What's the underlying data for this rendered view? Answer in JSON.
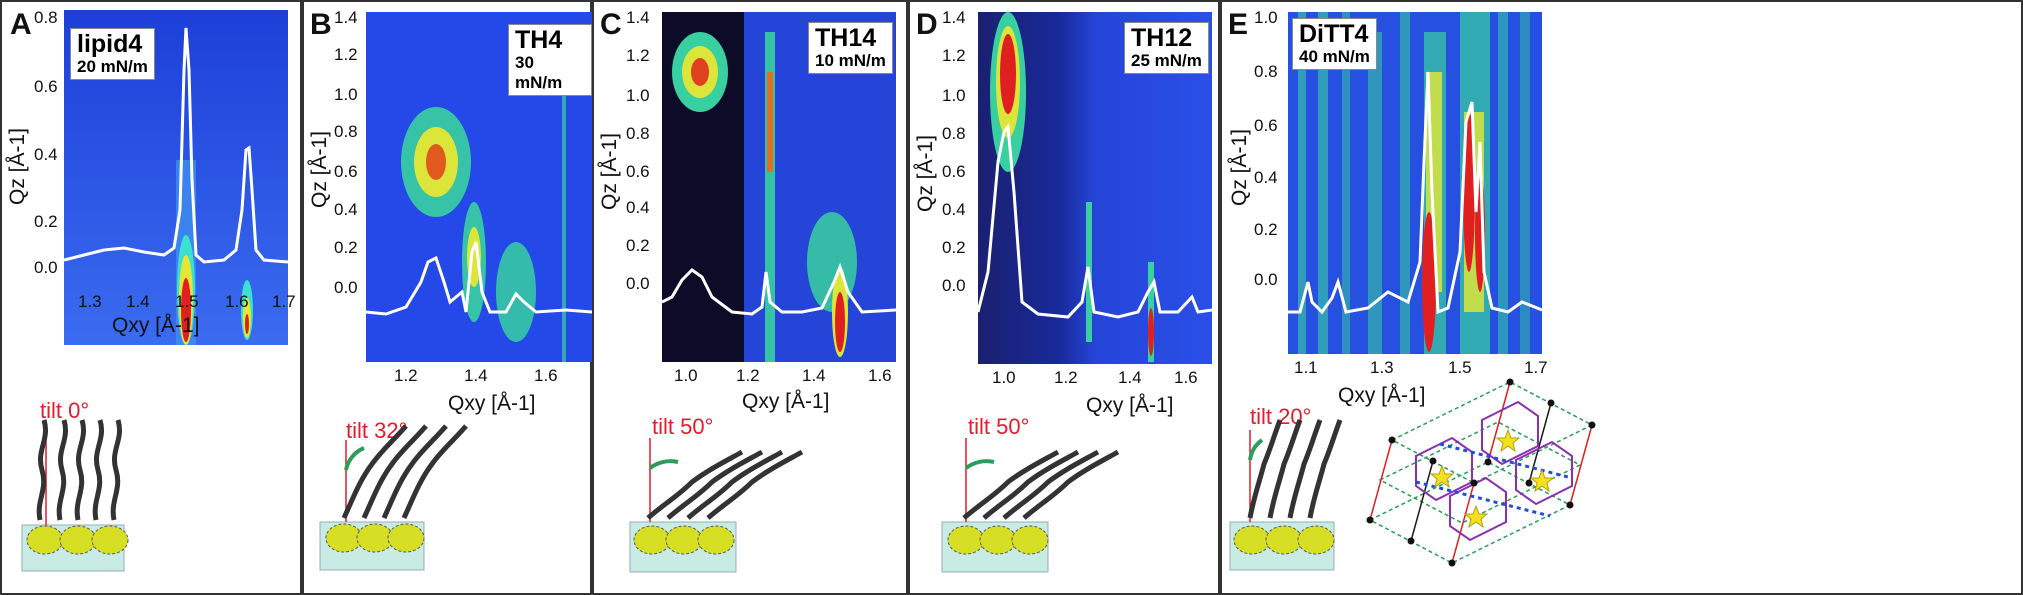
{
  "panels": [
    {
      "letter": "A",
      "sample": "lipid4",
      "pressure": "20 mN/m",
      "tilt": "tilt 0°",
      "xticks": [
        "1.3",
        "1.4",
        "1.5",
        "1.6",
        "1.7"
      ],
      "yticks": [
        "0.0",
        "0.2",
        "0.4",
        "0.6",
        "0.8"
      ],
      "xlabel": "Qxy [Å-1]",
      "ylabel": "Qz [Å-1]"
    },
    {
      "letter": "B",
      "sample": "TH4",
      "pressure": "30 mN/m",
      "tilt": "tilt 32°",
      "xticks": [
        "1.2",
        "1.4",
        "1.6"
      ],
      "yticks": [
        "0.0",
        "0.2",
        "0.4",
        "0.6",
        "0.8",
        "1.0",
        "1.2",
        "1.4"
      ],
      "xlabel": "Qxy [Å-1]",
      "ylabel": "Qz [Å-1]"
    },
    {
      "letter": "C",
      "sample": "TH14",
      "pressure": "10 mN/m",
      "tilt": "tilt 50°",
      "xticks": [
        "1.0",
        "1.2",
        "1.4",
        "1.6"
      ],
      "yticks": [
        "0.0",
        "0.2",
        "0.4",
        "0.6",
        "0.8",
        "1.0",
        "1.2",
        "1.4"
      ],
      "xlabel": "Qxy [Å-1]",
      "ylabel": "Qz [Å-1]"
    },
    {
      "letter": "D",
      "sample": "TH12",
      "pressure": "25 mN/m",
      "tilt": "tilt 50°",
      "xticks": [
        "1.0",
        "1.2",
        "1.4",
        "1.6"
      ],
      "yticks": [
        "0.0",
        "0.2",
        "0.4",
        "0.6",
        "0.8",
        "1.0",
        "1.2",
        "1.4"
      ],
      "xlabel": "Qxy [Å-1]",
      "ylabel": "Qz [Å-1]"
    },
    {
      "letter": "E",
      "sample": "DiTT4",
      "pressure": "40 mN/m",
      "tilt": "tilt 20°",
      "xticks": [
        "1.1",
        "1.3",
        "1.5",
        "1.7"
      ],
      "yticks": [
        "0.0",
        "0.2",
        "0.4",
        "0.6",
        "0.8",
        "1.0"
      ],
      "xlabel": "Qxy [Å-1]",
      "ylabel": "Qz [Å-1]"
    }
  ],
  "colors": {
    "tilt_text": "#e8192c",
    "molecule_head": "#d6df23",
    "substrate": "#c8ece4",
    "background_blue": "#2a4fe0"
  }
}
